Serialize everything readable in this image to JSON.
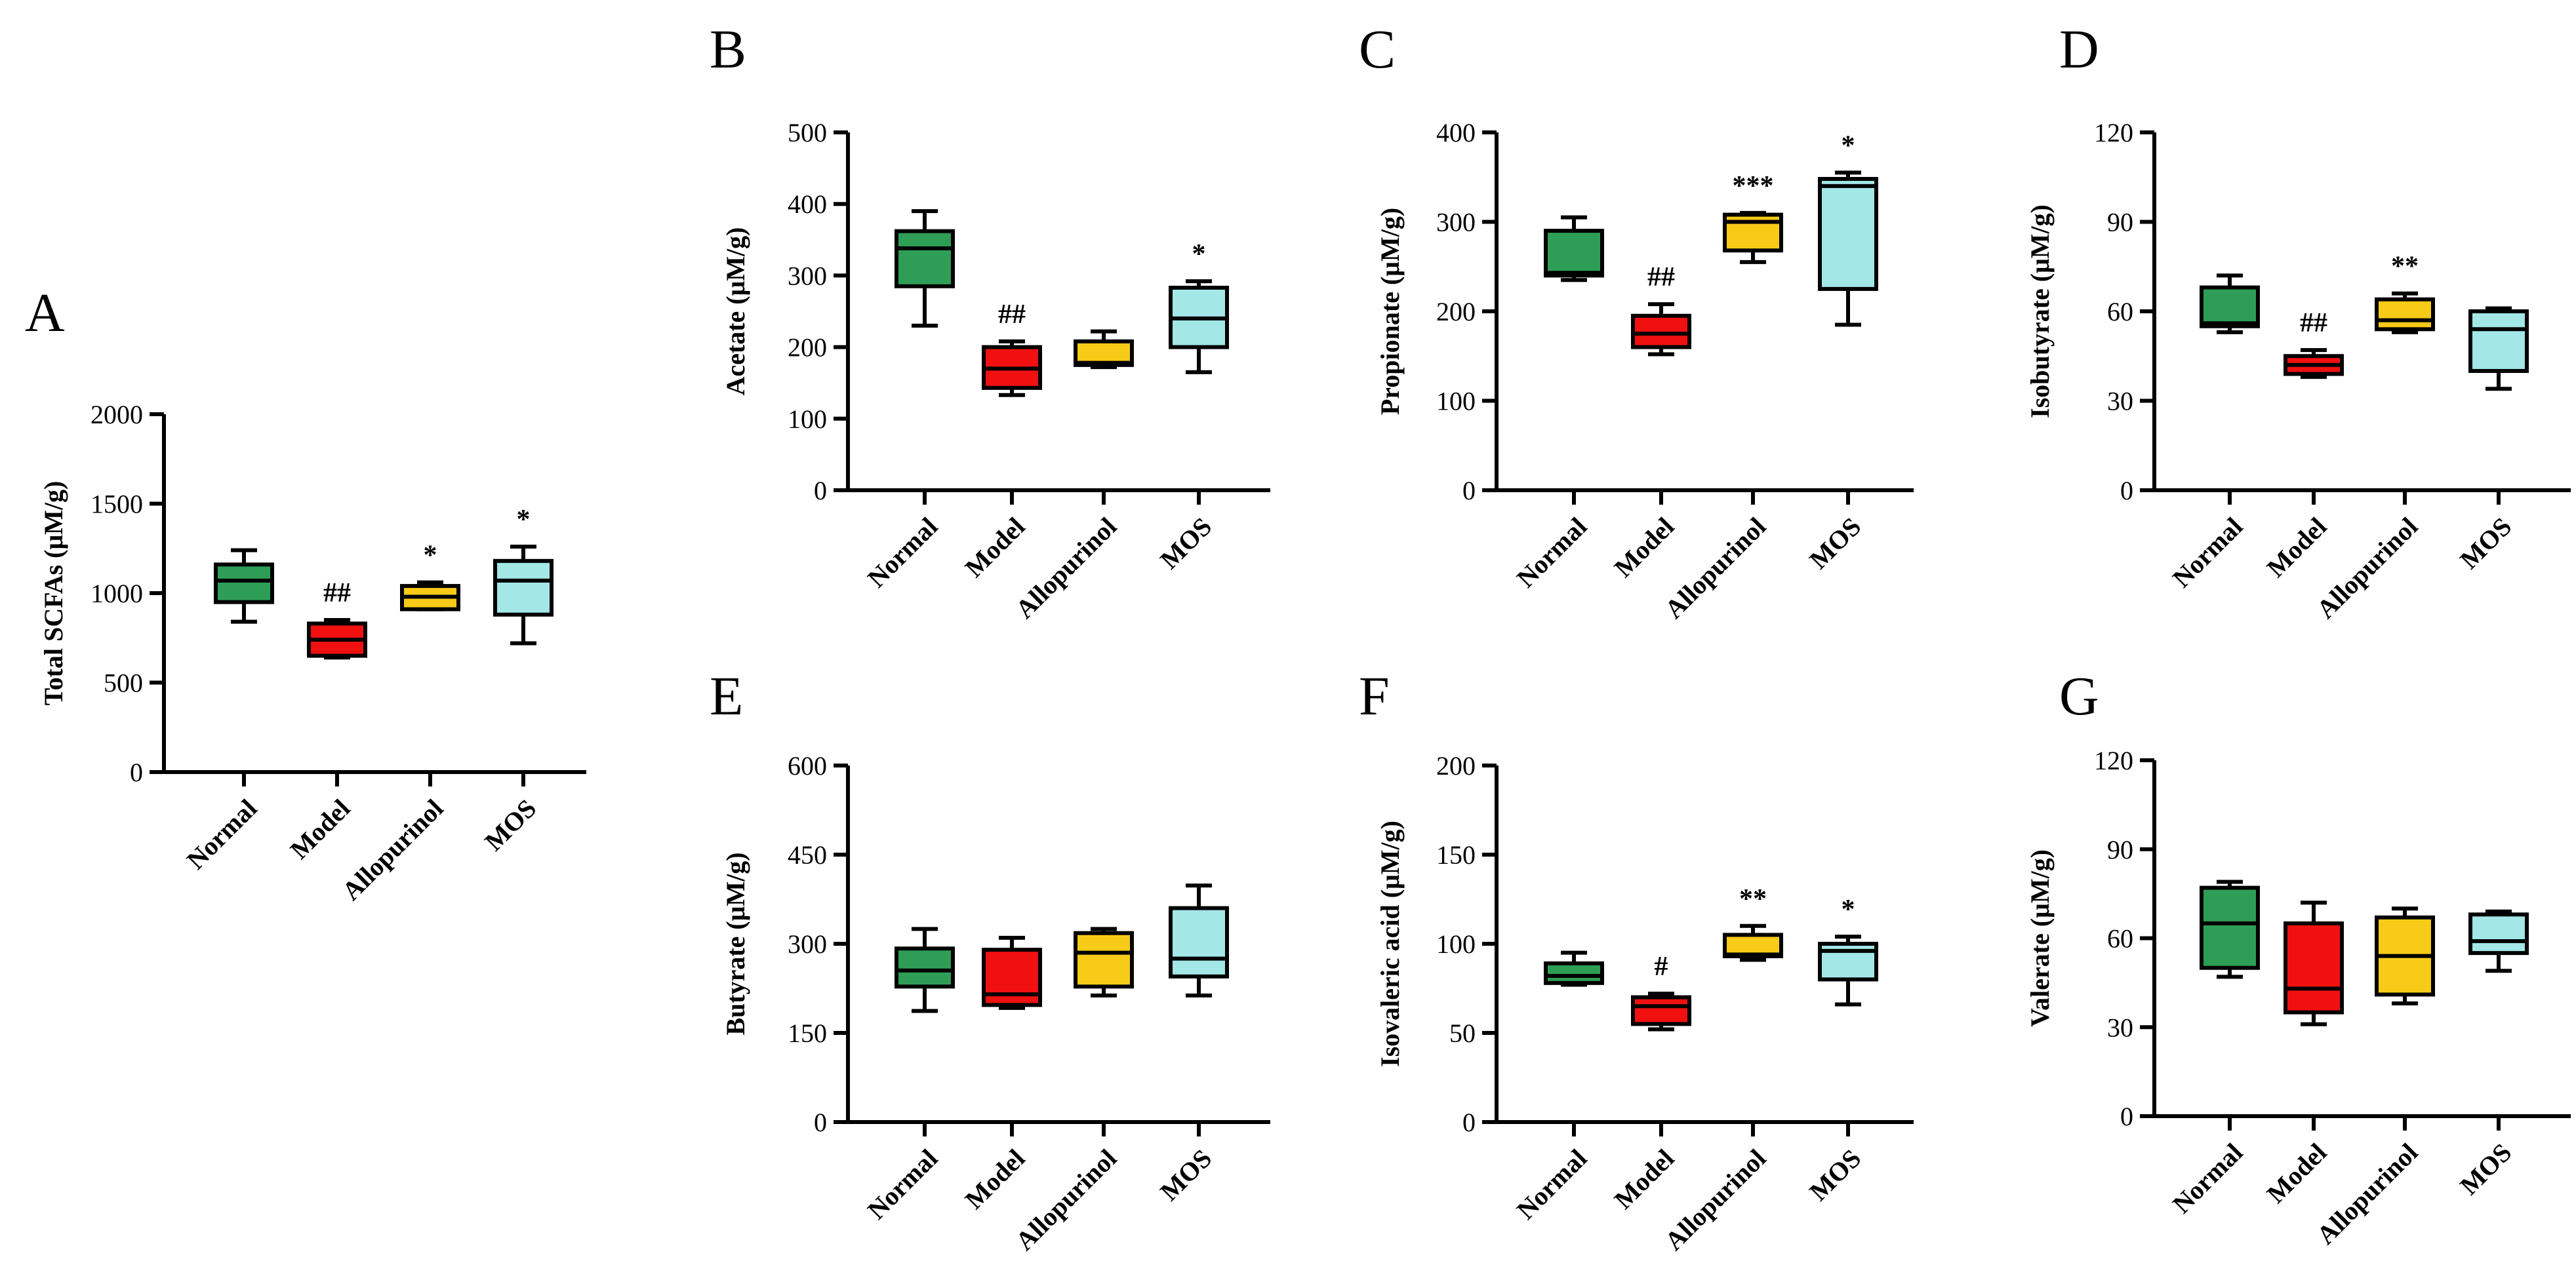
{
  "figure": {
    "colors": {
      "Normal": "#2e9e57",
      "Model": "#f01010",
      "Allopurinol": "#f7cb17",
      "MOS": "#a3e7e7",
      "axis": "#000000"
    }
  },
  "chart_data": [
    {
      "panel": "A",
      "type": "box",
      "ylabel": "Total SCFAs (μM/g)",
      "ylim": [
        0,
        2000
      ],
      "yticks": [
        0,
        500,
        1000,
        1500,
        2000
      ],
      "categories": [
        "Normal",
        "Model",
        "Allopurinol",
        "MOS"
      ],
      "boxes": [
        {
          "group": "Normal",
          "min": 840,
          "q1": 950,
          "median": 1070,
          "q3": 1160,
          "max": 1240,
          "sig": ""
        },
        {
          "group": "Model",
          "min": 640,
          "q1": 650,
          "median": 740,
          "q3": 830,
          "max": 850,
          "sig": "##"
        },
        {
          "group": "Allopurinol",
          "min": 910,
          "q1": 910,
          "median": 980,
          "q3": 1040,
          "max": 1060,
          "sig": "*"
        },
        {
          "group": "MOS",
          "min": 720,
          "q1": 880,
          "median": 1070,
          "q3": 1180,
          "max": 1260,
          "sig": "*"
        }
      ]
    },
    {
      "panel": "B",
      "type": "box",
      "ylabel": "Acetate (μM/g)",
      "ylim": [
        0,
        500
      ],
      "yticks": [
        0,
        100,
        200,
        300,
        400,
        500
      ],
      "categories": [
        "Normal",
        "Model",
        "Allopurinol",
        "MOS"
      ],
      "boxes": [
        {
          "group": "Normal",
          "min": 230,
          "q1": 285,
          "median": 338,
          "q3": 362,
          "max": 390,
          "sig": ""
        },
        {
          "group": "Model",
          "min": 133,
          "q1": 143,
          "median": 170,
          "q3": 200,
          "max": 208,
          "sig": "##"
        },
        {
          "group": "Allopurinol",
          "min": 172,
          "q1": 175,
          "median": 178,
          "q3": 208,
          "max": 222,
          "sig": ""
        },
        {
          "group": "MOS",
          "min": 165,
          "q1": 200,
          "median": 240,
          "q3": 283,
          "max": 292,
          "sig": "*"
        }
      ]
    },
    {
      "panel": "C",
      "type": "box",
      "ylabel": "Propionate (μM/g)",
      "ylim": [
        0,
        400
      ],
      "yticks": [
        0,
        100,
        200,
        300,
        400
      ],
      "categories": [
        "Normal",
        "Model",
        "Allopurinol",
        "MOS"
      ],
      "boxes": [
        {
          "group": "Normal",
          "min": 235,
          "q1": 240,
          "median": 243,
          "q3": 290,
          "max": 305,
          "sig": ""
        },
        {
          "group": "Model",
          "min": 152,
          "q1": 160,
          "median": 175,
          "q3": 195,
          "max": 208,
          "sig": "##"
        },
        {
          "group": "Allopurinol",
          "min": 255,
          "q1": 268,
          "median": 300,
          "q3": 308,
          "max": 310,
          "sig": "***"
        },
        {
          "group": "MOS",
          "min": 185,
          "q1": 225,
          "median": 340,
          "q3": 348,
          "max": 355,
          "sig": "*"
        }
      ]
    },
    {
      "panel": "D",
      "type": "box",
      "ylabel": "Isobutyrate (μM/g)",
      "ylim": [
        0,
        120
      ],
      "yticks": [
        0,
        30,
        60,
        90,
        120
      ],
      "categories": [
        "Normal",
        "Model",
        "Allopurinol",
        "MOS"
      ],
      "boxes": [
        {
          "group": "Normal",
          "min": 53,
          "q1": 55,
          "median": 56,
          "q3": 68,
          "max": 72,
          "sig": ""
        },
        {
          "group": "Model",
          "min": 38,
          "q1": 39,
          "median": 42,
          "q3": 45,
          "max": 47,
          "sig": "##"
        },
        {
          "group": "Allopurinol",
          "min": 53,
          "q1": 54,
          "median": 57,
          "q3": 64,
          "max": 66,
          "sig": "**"
        },
        {
          "group": "MOS",
          "min": 34,
          "q1": 40,
          "median": 54,
          "q3": 60,
          "max": 61,
          "sig": ""
        }
      ]
    },
    {
      "panel": "E",
      "type": "box",
      "ylabel": "Butyrate (μM/g)",
      "ylim": [
        0,
        600
      ],
      "yticks": [
        0,
        150,
        300,
        450,
        600
      ],
      "categories": [
        "Normal",
        "Model",
        "Allopurinol",
        "MOS"
      ],
      "boxes": [
        {
          "group": "Normal",
          "min": 187,
          "q1": 228,
          "median": 255,
          "q3": 292,
          "max": 325,
          "sig": ""
        },
        {
          "group": "Model",
          "min": 192,
          "q1": 197,
          "median": 215,
          "q3": 290,
          "max": 310,
          "sig": ""
        },
        {
          "group": "Allopurinol",
          "min": 213,
          "q1": 228,
          "median": 285,
          "q3": 318,
          "max": 325,
          "sig": ""
        },
        {
          "group": "MOS",
          "min": 213,
          "q1": 245,
          "median": 275,
          "q3": 360,
          "max": 398,
          "sig": ""
        }
      ]
    },
    {
      "panel": "F",
      "type": "box",
      "ylabel": "Isovaleric acid (μM/g)",
      "ylim": [
        0,
        200
      ],
      "yticks": [
        0,
        50,
        100,
        150,
        200
      ],
      "categories": [
        "Normal",
        "Model",
        "Allopurinol",
        "MOS"
      ],
      "boxes": [
        {
          "group": "Normal",
          "min": 77,
          "q1": 78,
          "median": 82,
          "q3": 89,
          "max": 95,
          "sig": ""
        },
        {
          "group": "Model",
          "min": 52,
          "q1": 55,
          "median": 65,
          "q3": 70,
          "max": 72,
          "sig": "#"
        },
        {
          "group": "Allopurinol",
          "min": 91,
          "q1": 93,
          "median": 94,
          "q3": 105,
          "max": 110,
          "sig": "**"
        },
        {
          "group": "MOS",
          "min": 66,
          "q1": 80,
          "median": 96,
          "q3": 100,
          "max": 104,
          "sig": "*"
        }
      ]
    },
    {
      "panel": "G",
      "type": "box",
      "ylabel": "Valerate (μM/g)",
      "ylim": [
        0,
        120
      ],
      "yticks": [
        0,
        30,
        60,
        90,
        120
      ],
      "categories": [
        "Normal",
        "Model",
        "Allopurinol",
        "MOS"
      ],
      "boxes": [
        {
          "group": "Normal",
          "min": 47,
          "q1": 50,
          "median": 65,
          "q3": 77,
          "max": 79,
          "sig": ""
        },
        {
          "group": "Model",
          "min": 31,
          "q1": 35,
          "median": 43,
          "q3": 65,
          "max": 72,
          "sig": ""
        },
        {
          "group": "Allopurinol",
          "min": 38,
          "q1": 41,
          "median": 54,
          "q3": 67,
          "max": 70,
          "sig": ""
        },
        {
          "group": "MOS",
          "min": 49,
          "q1": 55,
          "median": 59,
          "q3": 68,
          "max": 69,
          "sig": ""
        }
      ]
    }
  ]
}
